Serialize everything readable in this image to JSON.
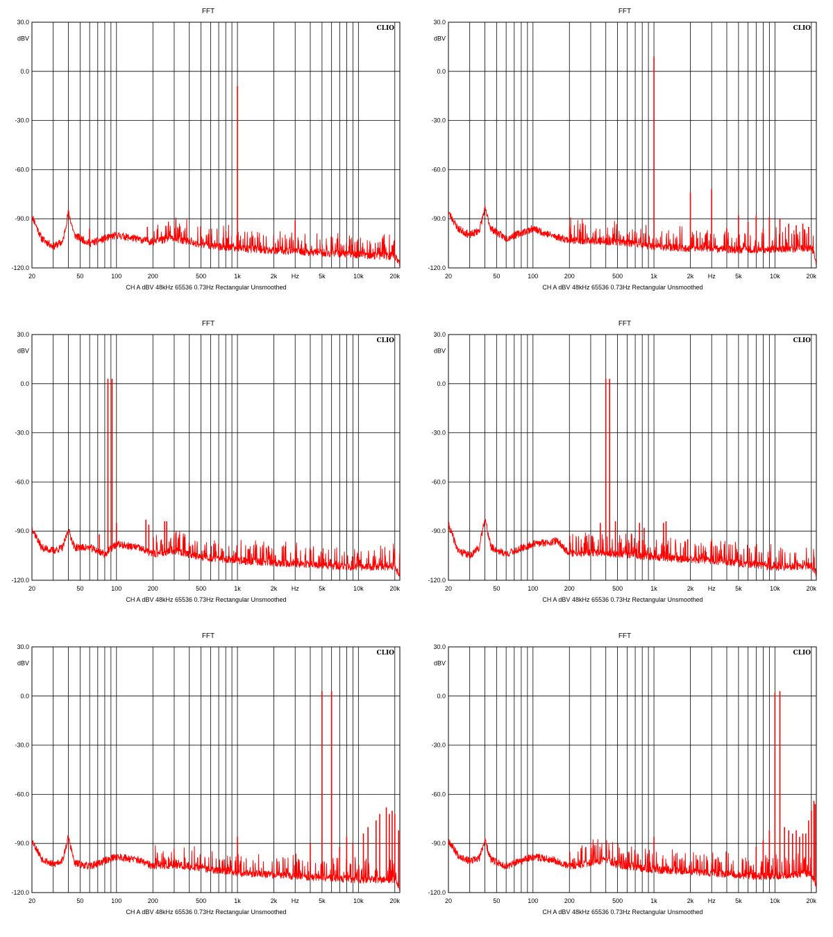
{
  "chart_data": [
    {
      "type": "line",
      "title": "FFT",
      "brand": "CLIO",
      "ylabel": "dBV",
      "xlabel": "Hz",
      "footer": "CH A   dBV   48kHz   65536   0.73Hz   Rectangular   Unsmoothed",
      "x_scale": "log",
      "xlim": [
        20,
        22000
      ],
      "ylim": [
        -120,
        30
      ],
      "y_ticks": [
        30,
        0,
        -30,
        -60,
        -90,
        -120
      ],
      "y_tick_labels": [
        "30.0",
        "0.0",
        "-30.0",
        "-60.0",
        "-90.0",
        "-120.0"
      ],
      "x_ticks": [
        20,
        50,
        100,
        200,
        500,
        1000,
        2000,
        5000,
        10000,
        20000
      ],
      "x_tick_labels": [
        "20",
        "50",
        "100",
        "200",
        "500",
        "1k",
        "2k",
        "5k",
        "10k",
        "20k"
      ],
      "x_unit_label_pos": 3000,
      "grid": true,
      "noise_seed": 11,
      "noise_floor": [
        [
          20,
          -88
        ],
        [
          24,
          -102
        ],
        [
          30,
          -107
        ],
        [
          36,
          -104
        ],
        [
          40,
          -86
        ],
        [
          45,
          -100
        ],
        [
          60,
          -105
        ],
        [
          100,
          -100
        ],
        [
          140,
          -102
        ],
        [
          200,
          -104
        ],
        [
          300,
          -102
        ],
        [
          500,
          -106
        ],
        [
          1000,
          -108
        ],
        [
          3000,
          -110
        ],
        [
          10000,
          -112
        ],
        [
          20000,
          -113
        ],
        [
          22000,
          -118
        ]
      ],
      "series": [
        {
          "color": "#ff0000",
          "peaks": [
            {
              "x": 1000,
              "y": -9
            },
            {
              "x": 3000,
              "y": -91
            },
            {
              "x": 60,
              "y": -96
            },
            {
              "x": 180,
              "y": -95
            }
          ]
        }
      ]
    },
    {
      "type": "line",
      "title": "FFT",
      "brand": "CLIO",
      "ylabel": "dBV",
      "xlabel": "Hz",
      "footer": "CH A   dBV   48kHz   65536   0.73Hz   Rectangular   Unsmoothed",
      "x_scale": "log",
      "xlim": [
        20,
        22000
      ],
      "ylim": [
        -120,
        30
      ],
      "y_ticks": [
        30,
        0,
        -30,
        -60,
        -90,
        -120
      ],
      "y_tick_labels": [
        "30.0",
        "0.0",
        "-30.0",
        "-60.0",
        "-90.0",
        "-120.0"
      ],
      "x_ticks": [
        20,
        50,
        100,
        200,
        500,
        1000,
        2000,
        5000,
        10000,
        20000
      ],
      "x_tick_labels": [
        "20",
        "50",
        "100",
        "200",
        "500",
        "1k",
        "2k",
        "5k",
        "10k",
        "20k"
      ],
      "x_unit_label_pos": 3000,
      "grid": true,
      "noise_seed": 23,
      "noise_floor": [
        [
          20,
          -86
        ],
        [
          24,
          -96
        ],
        [
          30,
          -100
        ],
        [
          36,
          -97
        ],
        [
          40,
          -84
        ],
        [
          45,
          -96
        ],
        [
          60,
          -102
        ],
        [
          100,
          -96
        ],
        [
          140,
          -100
        ],
        [
          200,
          -103
        ],
        [
          500,
          -104
        ],
        [
          1000,
          -107
        ],
        [
          5000,
          -109
        ],
        [
          20000,
          -108
        ],
        [
          22000,
          -116
        ]
      ],
      "series": [
        {
          "color": "#ff0000",
          "peaks": [
            {
              "x": 1000,
              "y": 9
            },
            {
              "x": 2000,
              "y": -74
            },
            {
              "x": 3000,
              "y": -72
            },
            {
              "x": 4000,
              "y": -96
            },
            {
              "x": 5000,
              "y": -88
            },
            {
              "x": 6000,
              "y": -92
            },
            {
              "x": 7000,
              "y": -88
            },
            {
              "x": 8000,
              "y": -96
            },
            {
              "x": 9000,
              "y": -89
            },
            {
              "x": 11000,
              "y": -90
            },
            {
              "x": 13000,
              "y": -93
            },
            {
              "x": 15000,
              "y": -94
            },
            {
              "x": 17000,
              "y": -93
            },
            {
              "x": 19000,
              "y": -95
            }
          ]
        }
      ]
    },
    {
      "type": "line",
      "title": "FFT",
      "brand": "CLIO",
      "ylabel": "dBV",
      "xlabel": "Hz",
      "footer": "CH A   dBV   48kHz   65536   0.73Hz   Rectangular   Unsmoothed",
      "x_scale": "log",
      "xlim": [
        20,
        22000
      ],
      "ylim": [
        -120,
        30
      ],
      "y_ticks": [
        30,
        0,
        -30,
        -60,
        -90,
        -120
      ],
      "y_tick_labels": [
        "30.0",
        "0.0",
        "-30.0",
        "-60.0",
        "-90.0",
        "-120.0"
      ],
      "x_ticks": [
        20,
        50,
        100,
        200,
        500,
        1000,
        2000,
        5000,
        10000,
        20000
      ],
      "x_tick_labels": [
        "20",
        "50",
        "100",
        "200",
        "500",
        "1k",
        "2k",
        "5k",
        "10k",
        "20k"
      ],
      "x_unit_label_pos": 3000,
      "grid": true,
      "noise_seed": 37,
      "noise_floor": [
        [
          20,
          -88
        ],
        [
          24,
          -100
        ],
        [
          30,
          -102
        ],
        [
          36,
          -100
        ],
        [
          40,
          -89
        ],
        [
          45,
          -100
        ],
        [
          60,
          -100
        ],
        [
          80,
          -104
        ],
        [
          100,
          -98
        ],
        [
          150,
          -100
        ],
        [
          200,
          -104
        ],
        [
          300,
          -102
        ],
        [
          500,
          -106
        ],
        [
          1000,
          -108
        ],
        [
          3000,
          -110
        ],
        [
          10000,
          -112
        ],
        [
          20000,
          -112
        ],
        [
          22000,
          -117
        ]
      ],
      "series": [
        {
          "color": "#ff0000",
          "peaks": [
            {
              "x": 85,
              "y": 3
            },
            {
              "x": 92,
              "y": 3
            },
            {
              "x": 72,
              "y": -92
            },
            {
              "x": 100,
              "y": -85
            },
            {
              "x": 175,
              "y": -83
            },
            {
              "x": 185,
              "y": -86
            },
            {
              "x": 250,
              "y": -84
            },
            {
              "x": 260,
              "y": -84
            }
          ]
        }
      ]
    },
    {
      "type": "line",
      "title": "FFT",
      "brand": "CLIO",
      "ylabel": "dBV",
      "xlabel": "Hz",
      "footer": "CH A   dBV   48kHz   65536   0.73Hz   Rectangular   Unsmoothed",
      "x_scale": "log",
      "xlim": [
        20,
        22000
      ],
      "ylim": [
        -120,
        30
      ],
      "y_ticks": [
        30,
        0,
        -30,
        -60,
        -90,
        -120
      ],
      "y_tick_labels": [
        "30.0",
        "0.0",
        "-30.0",
        "-60.0",
        "-90.0",
        "-120.0"
      ],
      "x_ticks": [
        20,
        50,
        100,
        200,
        500,
        1000,
        2000,
        5000,
        10000,
        20000
      ],
      "x_tick_labels": [
        "20",
        "50",
        "100",
        "200",
        "500",
        "1k",
        "2k",
        "5k",
        "10k",
        "20k"
      ],
      "x_unit_label_pos": 3000,
      "grid": true,
      "noise_seed": 41,
      "noise_floor": [
        [
          20,
          -86
        ],
        [
          24,
          -102
        ],
        [
          30,
          -105
        ],
        [
          36,
          -100
        ],
        [
          40,
          -82
        ],
        [
          45,
          -100
        ],
        [
          60,
          -104
        ],
        [
          100,
          -98
        ],
        [
          160,
          -96
        ],
        [
          200,
          -104
        ],
        [
          300,
          -103
        ],
        [
          500,
          -104
        ],
        [
          1000,
          -106
        ],
        [
          3000,
          -108
        ],
        [
          10000,
          -112
        ],
        [
          20000,
          -111
        ],
        [
          22000,
          -116
        ]
      ],
      "series": [
        {
          "color": "#ff0000",
          "peaks": [
            {
              "x": 400,
              "y": 3
            },
            {
              "x": 430,
              "y": 3
            },
            {
              "x": 360,
              "y": -85
            },
            {
              "x": 480,
              "y": -84
            },
            {
              "x": 760,
              "y": -85
            },
            {
              "x": 830,
              "y": -88
            },
            {
              "x": 1200,
              "y": -85
            },
            {
              "x": 1260,
              "y": -84
            },
            {
              "x": 1900,
              "y": -95
            }
          ]
        }
      ]
    },
    {
      "type": "line",
      "title": "FFT",
      "brand": "CLIO",
      "ylabel": "dBV",
      "xlabel": "Hz",
      "footer": "CH A   dBV   48kHz   65536   0.73Hz   Rectangular   Unsmoothed",
      "x_scale": "log",
      "xlim": [
        20,
        22000
      ],
      "ylim": [
        -120,
        30
      ],
      "y_ticks": [
        30,
        0,
        -30,
        -60,
        -90,
        -120
      ],
      "y_tick_labels": [
        "30.0",
        "0.0",
        "-30.0",
        "-60.0",
        "-90.0",
        "-120.0"
      ],
      "x_ticks": [
        20,
        50,
        100,
        200,
        500,
        1000,
        2000,
        5000,
        10000,
        20000
      ],
      "x_tick_labels": [
        "20",
        "50",
        "100",
        "200",
        "500",
        "1k",
        "2k",
        "5k",
        "10k",
        "20k"
      ],
      "x_unit_label_pos": 3000,
      "grid": true,
      "noise_seed": 53,
      "noise_floor": [
        [
          20,
          -88
        ],
        [
          24,
          -99
        ],
        [
          30,
          -103
        ],
        [
          36,
          -100
        ],
        [
          40,
          -86
        ],
        [
          45,
          -102
        ],
        [
          60,
          -104
        ],
        [
          100,
          -98
        ],
        [
          150,
          -100
        ],
        [
          200,
          -104
        ],
        [
          300,
          -103
        ],
        [
          500,
          -105
        ],
        [
          1000,
          -108
        ],
        [
          3000,
          -110
        ],
        [
          10000,
          -112
        ],
        [
          20000,
          -112
        ],
        [
          22000,
          -117
        ]
      ],
      "series": [
        {
          "color": "#ff0000",
          "peaks": [
            {
              "x": 5000,
              "y": 3
            },
            {
              "x": 6000,
              "y": 3
            },
            {
              "x": 1000,
              "y": -86
            },
            {
              "x": 4000,
              "y": -90
            },
            {
              "x": 7000,
              "y": -92
            },
            {
              "x": 8000,
              "y": -86
            },
            {
              "x": 9000,
              "y": -90
            },
            {
              "x": 11000,
              "y": -84
            },
            {
              "x": 12000,
              "y": -80
            },
            {
              "x": 14000,
              "y": -76
            },
            {
              "x": 15000,
              "y": -72
            },
            {
              "x": 17000,
              "y": -68
            },
            {
              "x": 18000,
              "y": -72
            },
            {
              "x": 19000,
              "y": -70
            },
            {
              "x": 20000,
              "y": -72
            },
            {
              "x": 21500,
              "y": -82
            }
          ]
        }
      ]
    },
    {
      "type": "line",
      "title": "FFT",
      "brand": "CLIO",
      "ylabel": "dBV",
      "xlabel": "Hz",
      "footer": "CH A   dBV   48kHz   65536   0.73Hz   Rectangular   Unsmoothed",
      "x_scale": "log",
      "xlim": [
        20,
        22000
      ],
      "ylim": [
        -120,
        30
      ],
      "y_ticks": [
        30,
        0,
        -30,
        -60,
        -90,
        -120
      ],
      "y_tick_labels": [
        "30.0",
        "0.0",
        "-30.0",
        "-60.0",
        "-90.0",
        "-120.0"
      ],
      "x_ticks": [
        20,
        50,
        100,
        200,
        500,
        1000,
        2000,
        5000,
        10000,
        20000
      ],
      "x_tick_labels": [
        "20",
        "50",
        "100",
        "200",
        "500",
        "1k",
        "2k",
        "5k",
        "10k",
        "20k"
      ],
      "x_unit_label_pos": 3000,
      "grid": true,
      "noise_seed": 67,
      "noise_floor": [
        [
          20,
          -88
        ],
        [
          24,
          -97
        ],
        [
          30,
          -101
        ],
        [
          36,
          -99
        ],
        [
          40,
          -88
        ],
        [
          45,
          -100
        ],
        [
          60,
          -104
        ],
        [
          100,
          -98
        ],
        [
          150,
          -100
        ],
        [
          200,
          -104
        ],
        [
          400,
          -100
        ],
        [
          500,
          -103
        ],
        [
          1000,
          -106
        ],
        [
          3000,
          -108
        ],
        [
          7000,
          -110
        ],
        [
          10000,
          -110
        ],
        [
          20000,
          -108
        ],
        [
          22000,
          -116
        ]
      ],
      "series": [
        {
          "color": "#ff0000",
          "peaks": [
            {
              "x": 10000,
              "y": 2
            },
            {
              "x": 11000,
              "y": 3
            },
            {
              "x": 1000,
              "y": -86
            },
            {
              "x": 7000,
              "y": -92
            },
            {
              "x": 8000,
              "y": -88
            },
            {
              "x": 9000,
              "y": -82
            },
            {
              "x": 12000,
              "y": -80
            },
            {
              "x": 13000,
              "y": -82
            },
            {
              "x": 14000,
              "y": -84
            },
            {
              "x": 15000,
              "y": -82
            },
            {
              "x": 16000,
              "y": -86
            },
            {
              "x": 17000,
              "y": -84
            },
            {
              "x": 18000,
              "y": -84
            },
            {
              "x": 19000,
              "y": -76
            },
            {
              "x": 20000,
              "y": -70
            },
            {
              "x": 21000,
              "y": -64
            },
            {
              "x": 21500,
              "y": -66
            }
          ]
        }
      ]
    }
  ]
}
